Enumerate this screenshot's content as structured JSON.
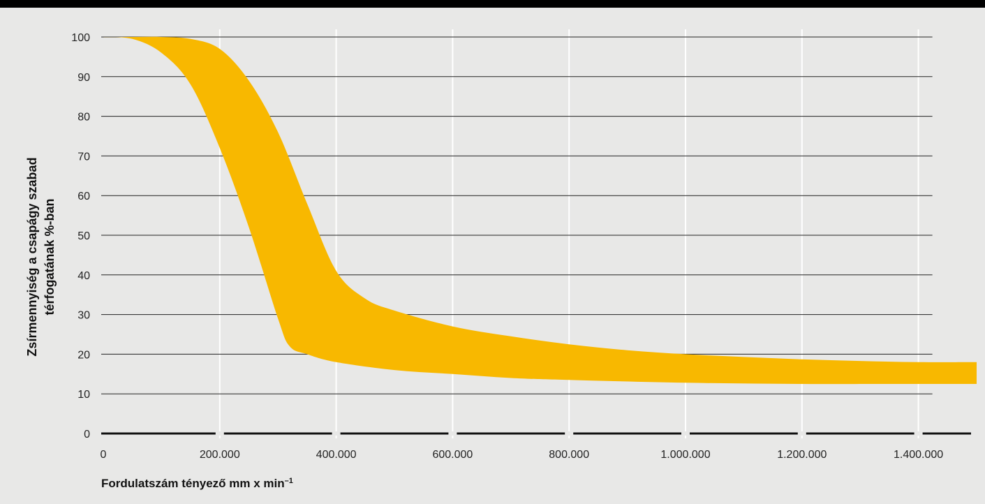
{
  "chart_data": {
    "type": "area",
    "title": "",
    "xlabel": "Fordulatszám tényező mm x min",
    "xlabel_superscript": "–1",
    "ylabel_lines": [
      "Zsírmennyiség a csapágy szabad",
      "térfogatának %-ban"
    ],
    "xlim": [
      0,
      1500000
    ],
    "ylim": [
      0,
      100
    ],
    "x_ticks": [
      {
        "value": 0,
        "label": "0"
      },
      {
        "value": 200000,
        "label": "200.000"
      },
      {
        "value": 400000,
        "label": "400.000"
      },
      {
        "value": 600000,
        "label": "600.000"
      },
      {
        "value": 800000,
        "label": "800.000"
      },
      {
        "value": 1000000,
        "label": "1.000.000"
      },
      {
        "value": 1200000,
        "label": "1.200.000"
      },
      {
        "value": 1400000,
        "label": "1.400.000"
      }
    ],
    "y_ticks": [
      0,
      10,
      20,
      30,
      40,
      50,
      60,
      70,
      80,
      90,
      100
    ],
    "grid": true,
    "band": {
      "color": "#f8b800",
      "upper": [
        [
          0,
          100
        ],
        [
          50000,
          100
        ],
        [
          100000,
          100
        ],
        [
          150000,
          99.5
        ],
        [
          200000,
          97
        ],
        [
          250000,
          89
        ],
        [
          300000,
          76
        ],
        [
          350000,
          58
        ],
        [
          400000,
          41
        ],
        [
          450000,
          34
        ],
        [
          500000,
          31
        ],
        [
          600000,
          27
        ],
        [
          700000,
          24.5
        ],
        [
          800000,
          22.5
        ],
        [
          900000,
          21
        ],
        [
          1000000,
          20
        ],
        [
          1100000,
          19.3
        ],
        [
          1200000,
          18.7
        ],
        [
          1300000,
          18.3
        ],
        [
          1400000,
          18
        ],
        [
          1500000,
          18
        ]
      ],
      "lower": [
        [
          0,
          100
        ],
        [
          50000,
          99.5
        ],
        [
          100000,
          96
        ],
        [
          150000,
          88
        ],
        [
          200000,
          72
        ],
        [
          250000,
          52
        ],
        [
          300000,
          29
        ],
        [
          320000,
          22
        ],
        [
          350000,
          20
        ],
        [
          400000,
          18
        ],
        [
          500000,
          16
        ],
        [
          600000,
          15
        ],
        [
          700000,
          14
        ],
        [
          800000,
          13.5
        ],
        [
          1000000,
          12.8
        ],
        [
          1200000,
          12.5
        ],
        [
          1400000,
          12.5
        ],
        [
          1500000,
          12.5
        ]
      ]
    }
  }
}
